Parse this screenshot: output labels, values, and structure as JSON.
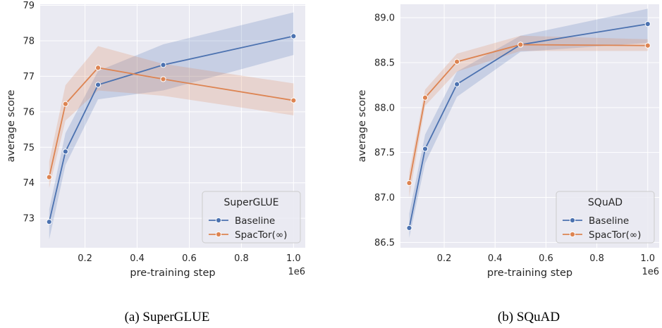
{
  "colors": {
    "plot_bg": "#eaeaf2",
    "grid": "#ffffff",
    "baseline": "#4c72b0",
    "spactor": "#dd8452"
  },
  "chart_data": [
    {
      "type": "line",
      "legend_title": "SuperGLUE",
      "legend_position": "lower-right",
      "xlabel": "pre-training step",
      "ylabel": "average score",
      "x_offset_label": "1e6",
      "caption": "(a) SuperGLUE",
      "grid": true,
      "xlim": [
        0.028,
        1.045
      ],
      "ylim": [
        72.17,
        79.03
      ],
      "xticks": [
        0.2,
        0.4,
        0.6,
        0.8,
        1.0
      ],
      "xtick_labels": [
        "0.2",
        "0.4",
        "0.6",
        "0.8",
        "1.0"
      ],
      "yticks": [
        73,
        74,
        75,
        76,
        77,
        78,
        79
      ],
      "ytick_labels": [
        "73",
        "74",
        "75",
        "76",
        "77",
        "78",
        "79"
      ],
      "x": [
        0.0625,
        0.125,
        0.25,
        0.5,
        1.0
      ],
      "series": [
        {
          "name": "Baseline",
          "values": [
            72.9,
            74.88,
            76.76,
            77.32,
            78.13
          ],
          "lower": [
            72.4,
            74.5,
            76.35,
            76.6,
            77.6
          ],
          "upper": [
            73.25,
            75.4,
            77.15,
            77.9,
            78.8
          ]
        },
        {
          "name": "SpacTor(∞)",
          "values": [
            74.16,
            76.22,
            77.24,
            76.92,
            76.32
          ],
          "lower": [
            73.85,
            75.75,
            76.6,
            76.45,
            75.9
          ],
          "upper": [
            74.6,
            76.75,
            77.85,
            77.35,
            76.8
          ]
        }
      ]
    },
    {
      "type": "line",
      "legend_title": "SQuAD",
      "legend_position": "lower-right",
      "xlabel": "pre-training step",
      "ylabel": "average score",
      "x_offset_label": "1e6",
      "caption": "(b) SQuAD",
      "grid": true,
      "xlim": [
        0.028,
        1.045
      ],
      "ylim": [
        86.44,
        89.15
      ],
      "xticks": [
        0.2,
        0.4,
        0.6,
        0.8,
        1.0
      ],
      "xtick_labels": [
        "0.2",
        "0.4",
        "0.6",
        "0.8",
        "1.0"
      ],
      "yticks": [
        86.5,
        87.0,
        87.5,
        88.0,
        88.5,
        89.0
      ],
      "ytick_labels": [
        "86.5",
        "87.0",
        "87.5",
        "88.0",
        "88.5",
        "89.0"
      ],
      "x": [
        0.0625,
        0.125,
        0.25,
        0.5,
        1.0
      ],
      "series": [
        {
          "name": "Baseline",
          "values": [
            86.66,
            87.54,
            88.26,
            88.7,
            88.93
          ],
          "lower": [
            86.55,
            87.38,
            88.12,
            88.62,
            88.72
          ],
          "upper": [
            86.82,
            87.7,
            88.4,
            88.8,
            89.1
          ]
        },
        {
          "name": "SpacTor(∞)",
          "values": [
            87.16,
            88.11,
            88.51,
            88.7,
            88.69
          ],
          "lower": [
            87.0,
            88.02,
            88.4,
            88.63,
            88.63
          ],
          "upper": [
            87.28,
            88.2,
            88.6,
            88.8,
            88.76
          ]
        }
      ]
    }
  ]
}
